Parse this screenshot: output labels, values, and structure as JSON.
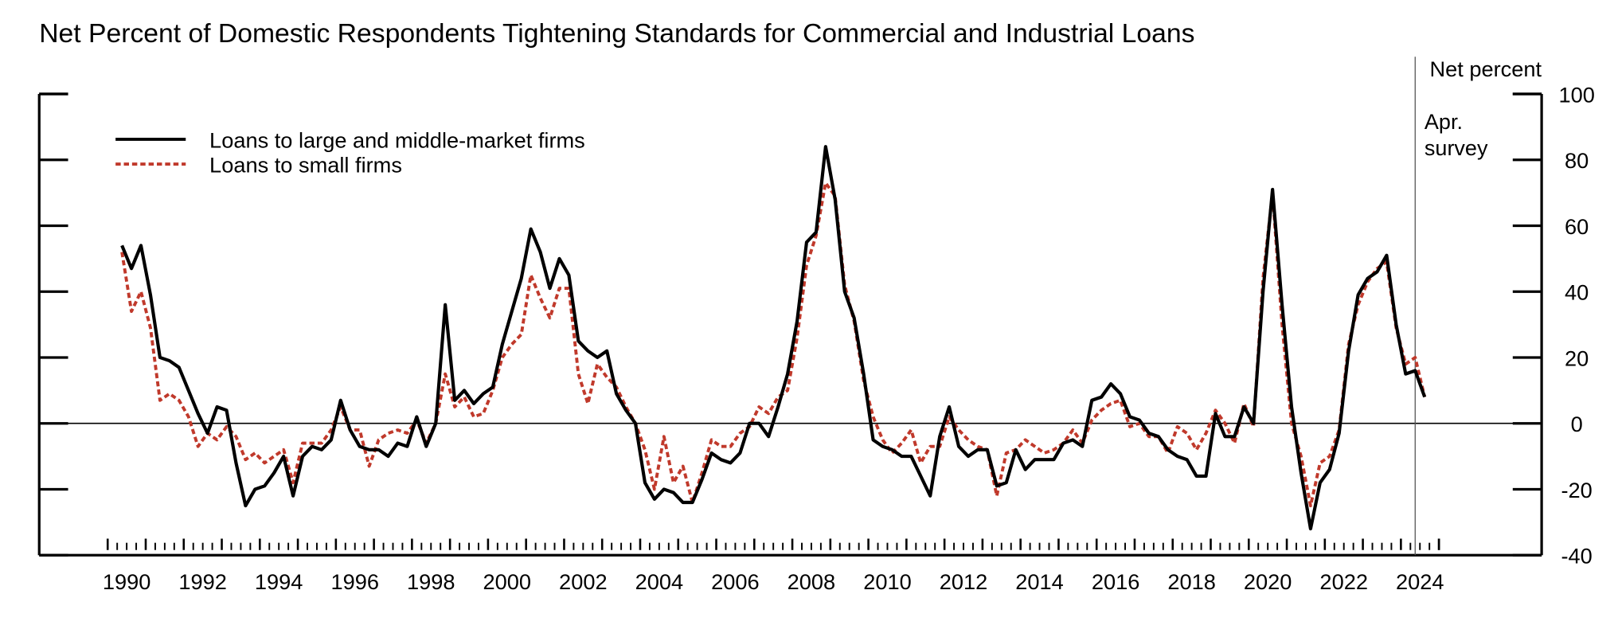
{
  "chart_data": {
    "type": "line",
    "title": "Net Percent of Domestic Respondents Tightening Standards for Commercial and Industrial Loans",
    "y_axis_label": "Net percent",
    "annotation": "Apr. survey",
    "vline": 2024.375,
    "legend": "upper left",
    "xlim": [
      1988.2,
      2027.7
    ],
    "ylim": [
      -40,
      100
    ],
    "yticks": [
      100,
      80,
      60,
      40,
      20,
      0,
      -20,
      -40
    ],
    "xticks": [
      1990,
      1992,
      1994,
      1996,
      1998,
      2000,
      2002,
      2004,
      2006,
      2008,
      2010,
      2012,
      2014,
      2016,
      2018,
      2020,
      2022,
      2024
    ],
    "x": [
      1990.375,
      1990.625,
      1990.875,
      1991.125,
      1991.375,
      1991.625,
      1991.875,
      1992.125,
      1992.375,
      1992.625,
      1992.875,
      1993.125,
      1993.375,
      1993.625,
      1993.875,
      1994.125,
      1994.375,
      1994.625,
      1994.875,
      1995.125,
      1995.375,
      1995.625,
      1995.875,
      1996.125,
      1996.375,
      1996.625,
      1996.875,
      1997.125,
      1997.375,
      1997.625,
      1997.875,
      1998.125,
      1998.375,
      1998.625,
      1998.875,
      1999.125,
      1999.375,
      1999.625,
      1999.875,
      2000.125,
      2000.375,
      2000.625,
      2000.875,
      2001.125,
      2001.375,
      2001.625,
      2001.875,
      2002.125,
      2002.375,
      2002.625,
      2002.875,
      2003.125,
      2003.375,
      2003.625,
      2003.875,
      2004.125,
      2004.375,
      2004.625,
      2004.875,
      2005.125,
      2005.375,
      2005.625,
      2005.875,
      2006.125,
      2006.375,
      2006.625,
      2006.875,
      2007.125,
      2007.375,
      2007.625,
      2007.875,
      2008.125,
      2008.375,
      2008.625,
      2008.875,
      2009.125,
      2009.375,
      2009.625,
      2009.875,
      2010.125,
      2010.375,
      2010.625,
      2010.875,
      2011.125,
      2011.375,
      2011.625,
      2011.875,
      2012.125,
      2012.375,
      2012.625,
      2012.875,
      2013.125,
      2013.375,
      2013.625,
      2013.875,
      2014.125,
      2014.375,
      2014.625,
      2014.875,
      2015.125,
      2015.375,
      2015.625,
      2015.875,
      2016.125,
      2016.375,
      2016.625,
      2016.875,
      2017.125,
      2017.375,
      2017.625,
      2017.875,
      2018.125,
      2018.375,
      2018.625,
      2018.875,
      2019.125,
      2019.375,
      2019.625,
      2019.875,
      2020.125,
      2020.375,
      2020.625,
      2020.875,
      2021.125,
      2021.375,
      2021.625,
      2021.875,
      2022.125,
      2022.375,
      2022.625,
      2022.875,
      2023.125,
      2023.375,
      2023.625,
      2023.875,
      2024.125,
      2024.375,
      2024.625
    ],
    "series": [
      {
        "name": "Loans to large and middle-market firms",
        "color": "#000000",
        "dash": "solid",
        "values": [
          54,
          47,
          54,
          39,
          20,
          19,
          17,
          10,
          3,
          -3,
          5,
          4,
          -12,
          -25,
          -20,
          -19,
          -15,
          -10,
          -22,
          -10,
          -7,
          -8,
          -5,
          7,
          -2,
          -7,
          -8,
          -8,
          -10,
          -6,
          -7,
          2,
          -7,
          0,
          36,
          7,
          10,
          6,
          9,
          11,
          24,
          34,
          44,
          59,
          52,
          41,
          50,
          45,
          25,
          22,
          20,
          22,
          9,
          4,
          0,
          -18,
          -23,
          -20,
          -21,
          -24,
          -24,
          -17,
          -9,
          -11,
          -12,
          -9,
          0,
          0,
          -4,
          5,
          15,
          31,
          55,
          58,
          84,
          68,
          40,
          32,
          15,
          -5,
          -7,
          -8,
          -10,
          -10,
          -16,
          -22,
          -4,
          5,
          -7,
          -10,
          -8,
          -8,
          -19,
          -18,
          -8,
          -14,
          -11,
          -11,
          -11,
          -6,
          -5,
          -7,
          7,
          8,
          12,
          9,
          2,
          1,
          -3,
          -4,
          -8,
          -10,
          -11,
          -16,
          -16,
          3,
          -4,
          -4,
          5,
          0,
          40,
          71,
          36,
          5,
          -15,
          -32,
          -18,
          -14,
          -3,
          22,
          39,
          44,
          46,
          51,
          30,
          15,
          16,
          8
        ]
      },
      {
        "name": "Loans to small firms",
        "color": "#c0392b",
        "dash": "dotted",
        "values": [
          52,
          34,
          40,
          29,
          7,
          9,
          7,
          2,
          -7,
          -3,
          -5,
          -1,
          -4,
          -11,
          -9,
          -12,
          -10,
          -8,
          -18,
          -6,
          -6,
          -6,
          -2,
          5,
          -2,
          -2,
          -13,
          -5,
          -3,
          -2,
          -3,
          1,
          -6,
          0,
          15,
          5,
          8,
          2,
          3,
          10,
          20,
          24,
          27,
          45,
          38,
          32,
          41,
          41,
          15,
          6,
          18,
          14,
          11,
          5,
          0,
          -8,
          -20,
          -4,
          -18,
          -13,
          -24,
          -15,
          -5,
          -7,
          -7,
          -3,
          -1,
          5,
          3,
          8,
          10,
          26,
          48,
          57,
          73,
          69,
          42,
          31,
          13,
          2,
          -5,
          -9,
          -6,
          -2,
          -12,
          -7,
          -7,
          2,
          -2,
          -5,
          -7,
          -8,
          -22,
          -9,
          -8,
          -5,
          -7,
          -9,
          -8,
          -6,
          -2,
          -6,
          1,
          4,
          6,
          7,
          -1,
          0,
          -4,
          -4,
          -9,
          -1,
          -3,
          -8,
          -3,
          4,
          0,
          -6,
          6,
          -1,
          44,
          70,
          30,
          0,
          -10,
          -25,
          -12,
          -10,
          -2,
          24,
          36,
          43,
          47,
          49,
          29,
          18,
          20,
          8
        ]
      }
    ]
  }
}
